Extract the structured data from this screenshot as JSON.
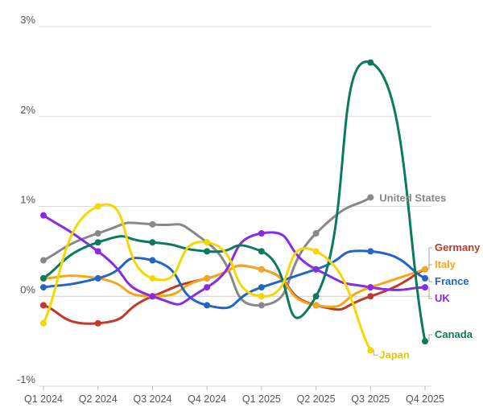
{
  "chart_data": {
    "type": "line",
    "title": "",
    "xlabel": "",
    "ylabel": "",
    "categories": [
      "Q1 2024",
      "Q2 2024",
      "Q3 2024",
      "Q4 2024",
      "Q1 2025",
      "Q2 2025",
      "Q3 2025",
      "Q4 2025"
    ],
    "ylim": [
      -1,
      3
    ],
    "yticks": [
      {
        "value": 3,
        "label": "3%"
      },
      {
        "value": 2,
        "label": "2%"
      },
      {
        "value": 1,
        "label": "1%"
      },
      {
        "value": 0,
        "label": "0%"
      },
      {
        "value": -1,
        "label": "-1%"
      }
    ],
    "grid": true,
    "legend": "direct labels at line ends",
    "series": [
      {
        "name": "United States",
        "color": "#888888",
        "values": [
          0.4,
          0.7,
          0.8,
          0.6,
          -0.1,
          0.7,
          1.1,
          null
        ]
      },
      {
        "name": "Germany",
        "color": "#c0392b",
        "values": [
          -0.1,
          -0.3,
          0.0,
          0.2,
          0.3,
          -0.1,
          0.0,
          0.3
        ]
      },
      {
        "name": "Italy",
        "color": "#f2a81d",
        "values": [
          0.2,
          0.2,
          0.0,
          0.2,
          0.3,
          -0.1,
          0.1,
          0.3
        ]
      },
      {
        "name": "France",
        "color": "#2166c4",
        "values": [
          0.1,
          0.2,
          0.4,
          -0.1,
          0.1,
          0.3,
          0.5,
          0.2
        ]
      },
      {
        "name": "UK",
        "color": "#8a2be2",
        "values": [
          0.9,
          0.5,
          0.0,
          0.1,
          0.7,
          0.3,
          0.1,
          0.1
        ]
      },
      {
        "name": "Canada",
        "color": "#0b7a5f",
        "values": [
          0.2,
          0.6,
          0.6,
          0.5,
          0.5,
          0.0,
          2.6,
          -0.5
        ]
      },
      {
        "name": "Japan",
        "color": "#f5d800",
        "values": [
          -0.3,
          1.0,
          0.2,
          0.6,
          0.0,
          0.5,
          -0.6,
          null
        ]
      }
    ]
  }
}
